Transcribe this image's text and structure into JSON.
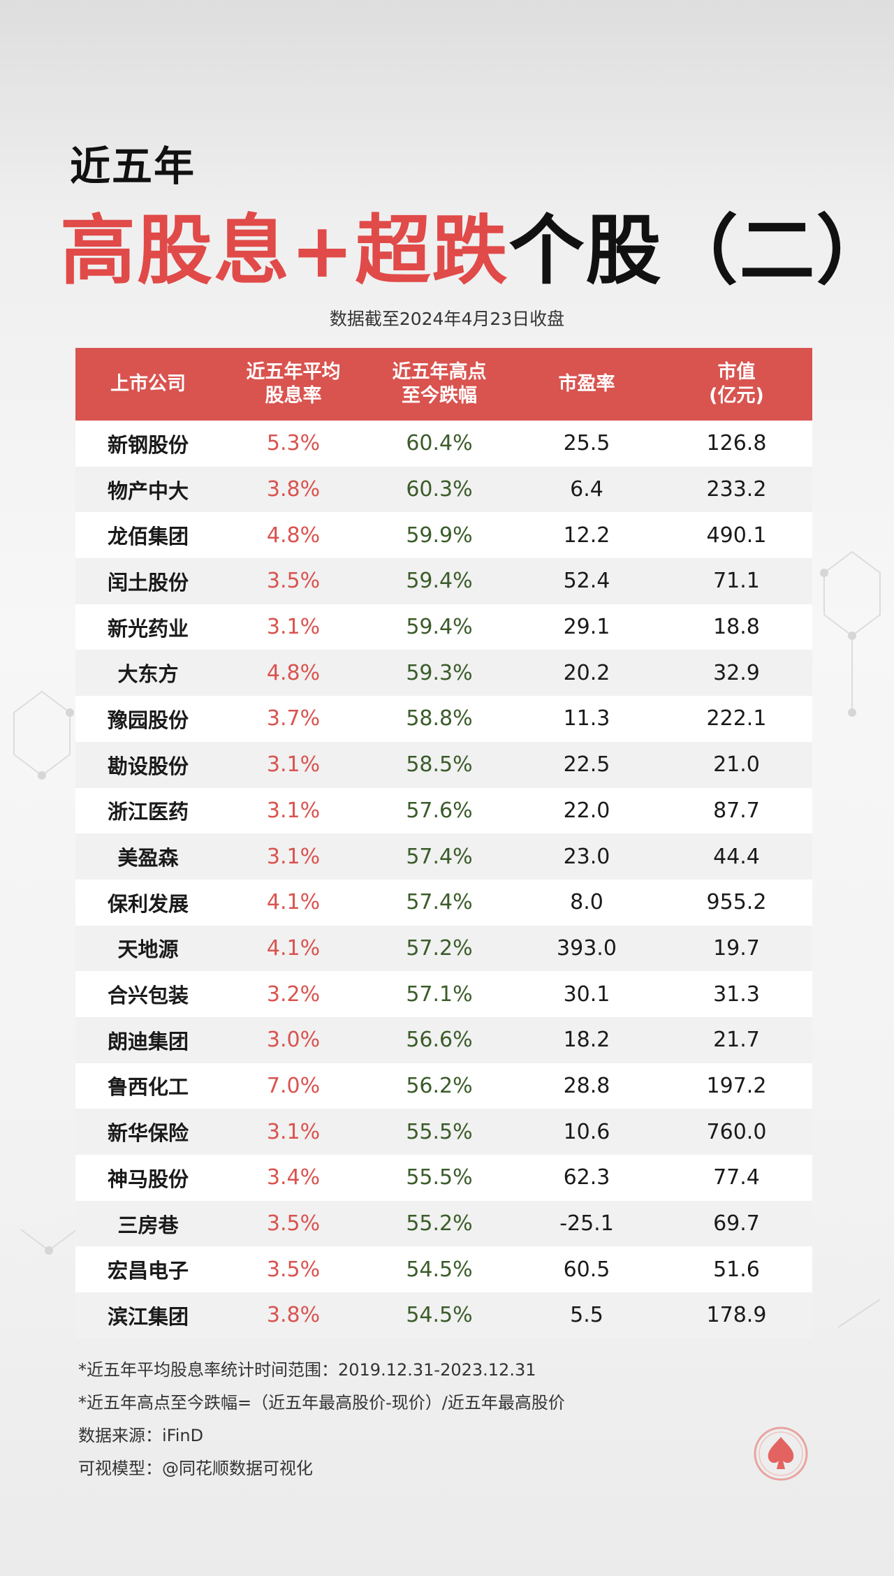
{
  "header": {
    "subtitle": "近五年",
    "title_red": "高股息+超跌",
    "title_black": "个股（二）",
    "date_note": "数据截至2024年4月23日收盘"
  },
  "table": {
    "columns": [
      [
        "上市公司"
      ],
      [
        "近五年平均",
        "股息率"
      ],
      [
        "近五年高点",
        "至今跌幅"
      ],
      [
        "市盈率"
      ],
      [
        "市值",
        "(亿元)"
      ]
    ]
  },
  "chart_data": {
    "type": "table",
    "title": "近五年 高股息+超跌个股（二）",
    "columns": [
      "上市公司",
      "近五年平均股息率",
      "近五年高点至今跌幅",
      "市盈率",
      "市值(亿元)"
    ],
    "rows": [
      [
        "新钢股份",
        "5.3%",
        "60.4%",
        "25.5",
        "126.8"
      ],
      [
        "物产中大",
        "3.8%",
        "60.3%",
        "6.4",
        "233.2"
      ],
      [
        "龙佰集团",
        "4.8%",
        "59.9%",
        "12.2",
        "490.1"
      ],
      [
        "闰土股份",
        "3.5%",
        "59.4%",
        "52.4",
        "71.1"
      ],
      [
        "新光药业",
        "3.1%",
        "59.4%",
        "29.1",
        "18.8"
      ],
      [
        "大东方",
        "4.8%",
        "59.3%",
        "20.2",
        "32.9"
      ],
      [
        "豫园股份",
        "3.7%",
        "58.8%",
        "11.3",
        "222.1"
      ],
      [
        "勘设股份",
        "3.1%",
        "58.5%",
        "22.5",
        "21.0"
      ],
      [
        "浙江医药",
        "3.1%",
        "57.6%",
        "22.0",
        "87.7"
      ],
      [
        "美盈森",
        "3.1%",
        "57.4%",
        "23.0",
        "44.4"
      ],
      [
        "保利发展",
        "4.1%",
        "57.4%",
        "8.0",
        "955.2"
      ],
      [
        "天地源",
        "4.1%",
        "57.2%",
        "393.0",
        "19.7"
      ],
      [
        "合兴包装",
        "3.2%",
        "57.1%",
        "30.1",
        "31.3"
      ],
      [
        "朗迪集团",
        "3.0%",
        "56.6%",
        "18.2",
        "21.7"
      ],
      [
        "鲁西化工",
        "7.0%",
        "56.2%",
        "28.8",
        "197.2"
      ],
      [
        "新华保险",
        "3.1%",
        "55.5%",
        "10.6",
        "760.0"
      ],
      [
        "神马股份",
        "3.4%",
        "55.5%",
        "62.3",
        "77.4"
      ],
      [
        "三房巷",
        "3.5%",
        "55.2%",
        "-25.1",
        "69.7"
      ],
      [
        "宏昌电子",
        "3.5%",
        "54.5%",
        "60.5",
        "51.6"
      ],
      [
        "滨江集团",
        "3.8%",
        "54.5%",
        "5.5",
        "178.9"
      ]
    ]
  },
  "notes": [
    "*近五年平均股息率统计时间范围：2019.12.31-2023.12.31",
    "*近五年高点至今跌幅=（近五年最高股价-现价）/近五年最高股价",
    "数据来源：iFinD",
    "可视模型：@同花顺数据可视化"
  ],
  "logo": {
    "icon": "spade-logo-icon",
    "color": "#e04a48"
  },
  "colors": {
    "accent_red": "#d9534f",
    "drop_green": "#3b5c2a",
    "title_red": "#e04a48"
  }
}
